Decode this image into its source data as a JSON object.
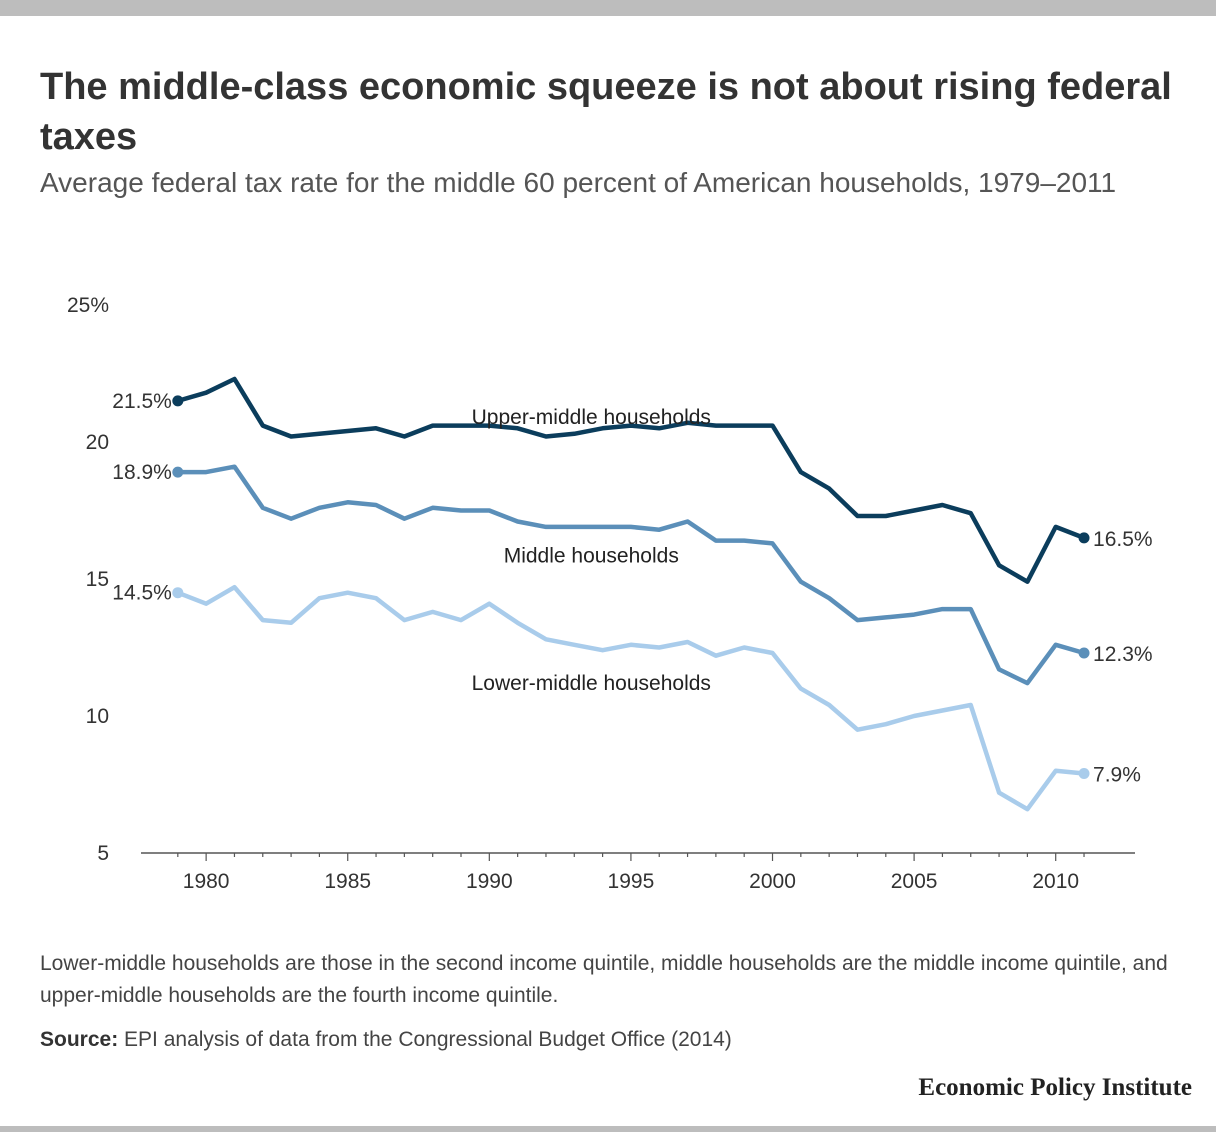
{
  "chart_data": {
    "type": "line",
    "title": "The middle-class economic squeeze is not about rising federal taxes",
    "subtitle": "Average federal tax rate for the middle 60 percent of American households, 1979–2011",
    "xlabel": "",
    "ylabel": "",
    "xlim": [
      1977.7,
      2012.8
    ],
    "ylim": [
      5,
      25
    ],
    "x_ticks": [
      1980,
      1985,
      1990,
      1995,
      2000,
      2005,
      2010
    ],
    "y_ticks": [
      {
        "value": 5,
        "label": "5"
      },
      {
        "value": 10,
        "label": "10"
      },
      {
        "value": 15,
        "label": "15"
      },
      {
        "value": 20,
        "label": "20"
      },
      {
        "value": 25,
        "label": "25%"
      }
    ],
    "grid": false,
    "x": [
      1979,
      1980,
      1981,
      1982,
      1983,
      1984,
      1985,
      1986,
      1987,
      1988,
      1989,
      1990,
      1991,
      1992,
      1993,
      1994,
      1995,
      1996,
      1997,
      1998,
      1999,
      2000,
      2001,
      2002,
      2003,
      2004,
      2005,
      2006,
      2007,
      2008,
      2009,
      2010,
      2011
    ],
    "series": [
      {
        "name": "Upper-middle households",
        "color": "#0b3d5c",
        "start_label": "21.5%",
        "end_label": "16.5%",
        "values": [
          21.5,
          21.8,
          22.3,
          20.6,
          20.2,
          20.3,
          20.4,
          20.5,
          20.2,
          20.6,
          20.6,
          20.6,
          20.5,
          20.2,
          20.3,
          20.5,
          20.6,
          20.5,
          20.7,
          20.6,
          20.6,
          20.6,
          18.9,
          18.3,
          17.3,
          17.3,
          17.5,
          17.7,
          17.4,
          15.5,
          14.9,
          16.9,
          16.5
        ]
      },
      {
        "name": "Middle households",
        "color": "#5b8fb9",
        "start_label": "18.9%",
        "end_label": "12.3%",
        "values": [
          18.9,
          18.9,
          19.1,
          17.6,
          17.2,
          17.6,
          17.8,
          17.7,
          17.2,
          17.6,
          17.5,
          17.5,
          17.1,
          16.9,
          16.9,
          16.9,
          16.9,
          16.8,
          17.1,
          16.4,
          16.4,
          16.3,
          14.9,
          14.3,
          13.5,
          13.6,
          13.7,
          13.9,
          13.9,
          11.7,
          11.2,
          12.6,
          12.3
        ]
      },
      {
        "name": "Lower-middle households",
        "color": "#a9cceb",
        "start_label": "14.5%",
        "end_label": "7.9%",
        "values": [
          14.5,
          14.1,
          14.7,
          13.5,
          13.4,
          14.3,
          14.5,
          14.3,
          13.5,
          13.8,
          13.5,
          14.1,
          13.4,
          12.8,
          12.6,
          12.4,
          12.6,
          12.5,
          12.7,
          12.2,
          12.5,
          12.3,
          11.0,
          10.4,
          9.5,
          9.7,
          10.0,
          10.2,
          10.4,
          7.2,
          6.6,
          8.0,
          7.9
        ]
      }
    ]
  },
  "note": "Lower-middle households are those in the second income quintile, middle households are the middle income quintile, and upper-middle households are the fourth income quintile.",
  "source": {
    "label": "Source:",
    "text": " EPI analysis of data from the Congressional Budget Office (2014)"
  },
  "brand": "Economic Policy Institute"
}
